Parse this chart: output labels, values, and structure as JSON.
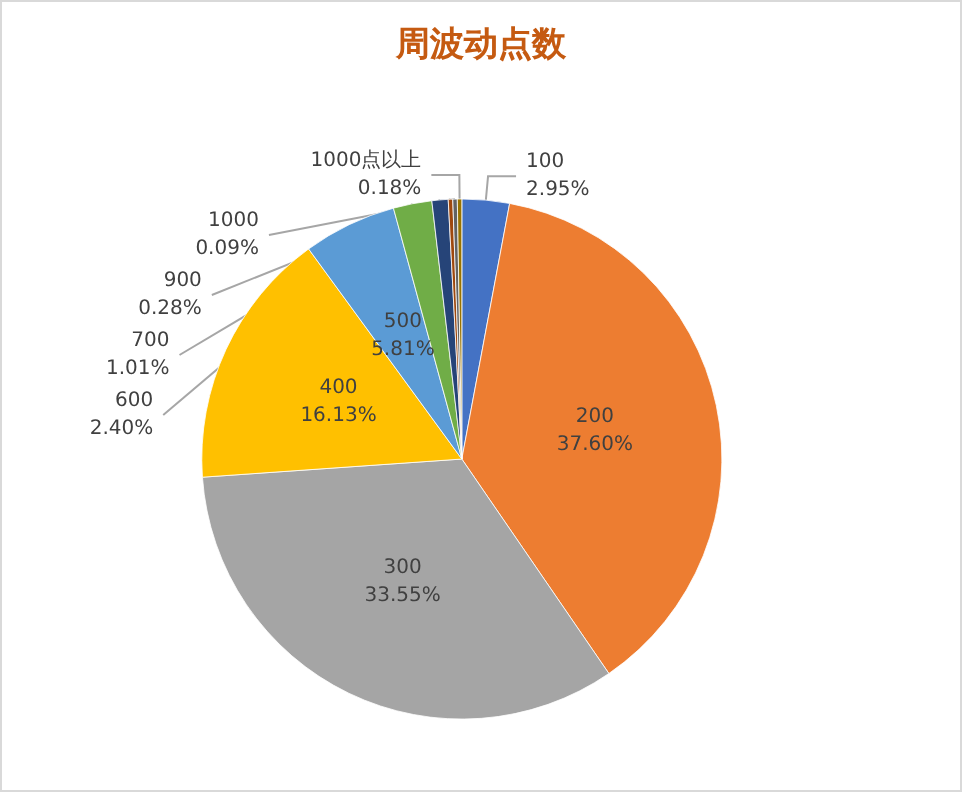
{
  "chart_data": {
    "type": "pie",
    "title": "周波动点数",
    "categories": [
      "100",
      "200",
      "300",
      "400",
      "500",
      "600",
      "700",
      "900",
      "1000",
      "1000点以上"
    ],
    "values": [
      2.95,
      37.6,
      33.55,
      16.13,
      5.81,
      2.4,
      1.01,
      0.28,
      0.09,
      0.18
    ],
    "value_labels": [
      "2.95%",
      "37.60%",
      "33.55%",
      "16.13%",
      "5.81%",
      "2.40%",
      "1.01%",
      "0.28%",
      "0.09%",
      "0.18%"
    ],
    "colors": [
      "#4472c4",
      "#ed7d31",
      "#a5a5a5",
      "#ffc000",
      "#5b9bd5",
      "#70ad47",
      "#264478",
      "#9e480e",
      "#636363",
      "#997300"
    ],
    "legend": false
  }
}
